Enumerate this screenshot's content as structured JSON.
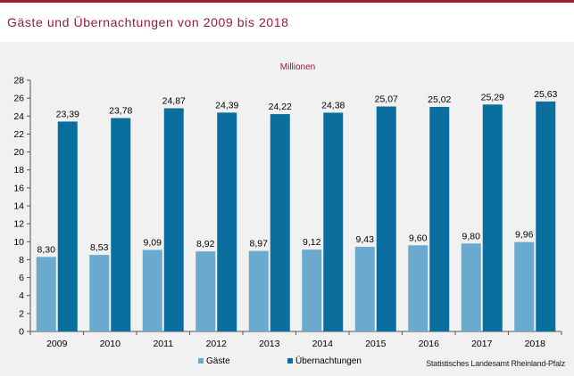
{
  "header": {
    "title": "Gäste und Übernachtungen von 2009 bis 2018"
  },
  "source": "Statistisches Landesamt Rheinland-Pfalz",
  "colors": {
    "accent": "#9b1b30",
    "gaeste": "#6aaace",
    "uebernachtungen": "#0a6f9f"
  },
  "chart_data": {
    "type": "bar",
    "title": "Millionen",
    "xlabel": "",
    "ylabel": "",
    "ylim": [
      0,
      28
    ],
    "yticks": [
      0,
      2,
      4,
      6,
      8,
      10,
      12,
      14,
      16,
      18,
      20,
      22,
      24,
      26,
      28
    ],
    "grid": false,
    "legend_position": "bottom",
    "categories": [
      "2009",
      "2010",
      "2011",
      "2012",
      "2013",
      "2014",
      "2015",
      "2016",
      "2017",
      "2018"
    ],
    "series": [
      {
        "name": "Gäste",
        "values": [
          8.3,
          8.53,
          9.09,
          8.92,
          8.97,
          9.12,
          9.43,
          9.6,
          9.8,
          9.96
        ],
        "labels": [
          "8,30",
          "8,53",
          "9,09",
          "8,92",
          "8,97",
          "9,12",
          "9,43",
          "9,60",
          "9,80",
          "9,96"
        ]
      },
      {
        "name": "Übernachtungen",
        "values": [
          23.39,
          23.78,
          24.87,
          24.39,
          24.22,
          24.38,
          25.07,
          25.02,
          25.29,
          25.63
        ],
        "labels": [
          "23,39",
          "23,78",
          "24,87",
          "24,39",
          "24,22",
          "24,38",
          "25,07",
          "25,02",
          "25,29",
          "25,63"
        ]
      }
    ]
  }
}
